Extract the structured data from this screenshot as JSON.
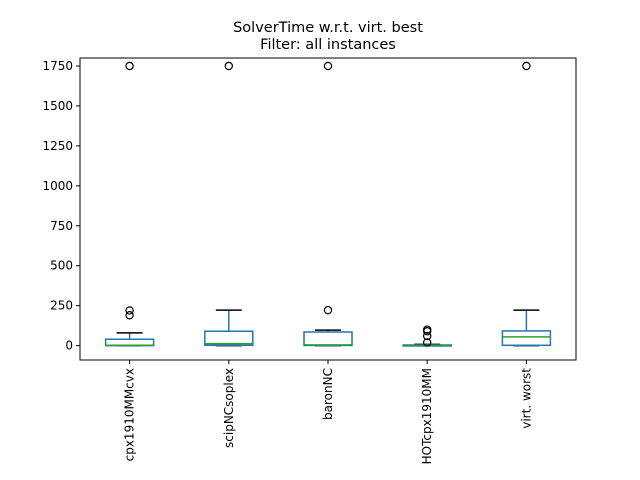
{
  "chart_data": {
    "type": "box",
    "title": "SolverTime w.r.t. virt. best",
    "subtitle": "Filter: all instances",
    "xlabel": "",
    "ylabel": "",
    "ylim": [
      -90,
      1800
    ],
    "yticks": [
      0,
      250,
      500,
      750,
      1000,
      1250,
      1500,
      1750
    ],
    "grid": false,
    "colors": {
      "box": "#1f77b4",
      "median": "#2ca02c",
      "whisker": "#000000",
      "flier": "#000000"
    },
    "categories": [
      "cpx1910MMcvx",
      "scipNCsoplex",
      "baronNC",
      "HOTcpx1910MM",
      "virt. worst"
    ],
    "boxes": [
      {
        "name": "cpx1910MMcvx",
        "q1": 0,
        "median": 2,
        "q3": 40,
        "whisker_low": 0,
        "whisker_high": 80,
        "fliers": [
          190,
          220,
          1750
        ]
      },
      {
        "name": "scipNCsoplex",
        "q1": 2,
        "median": 12,
        "q3": 90,
        "whisker_low": 0,
        "whisker_high": 222,
        "fliers": [
          1750
        ]
      },
      {
        "name": "baronNC",
        "q1": 1,
        "median": 5,
        "q3": 85,
        "whisker_low": 0,
        "whisker_high": 97,
        "fliers": [
          222,
          1750
        ]
      },
      {
        "name": "HOTcpx1910MM",
        "q1": 0,
        "median": 1,
        "q3": 4,
        "whisker_low": 0,
        "whisker_high": 8,
        "fliers": [
          20,
          60,
          90,
          100
        ]
      },
      {
        "name": "virt. worst",
        "q1": 2,
        "median": 55,
        "q3": 92,
        "whisker_low": 0,
        "whisker_high": 222,
        "fliers": [
          1750
        ]
      }
    ]
  }
}
